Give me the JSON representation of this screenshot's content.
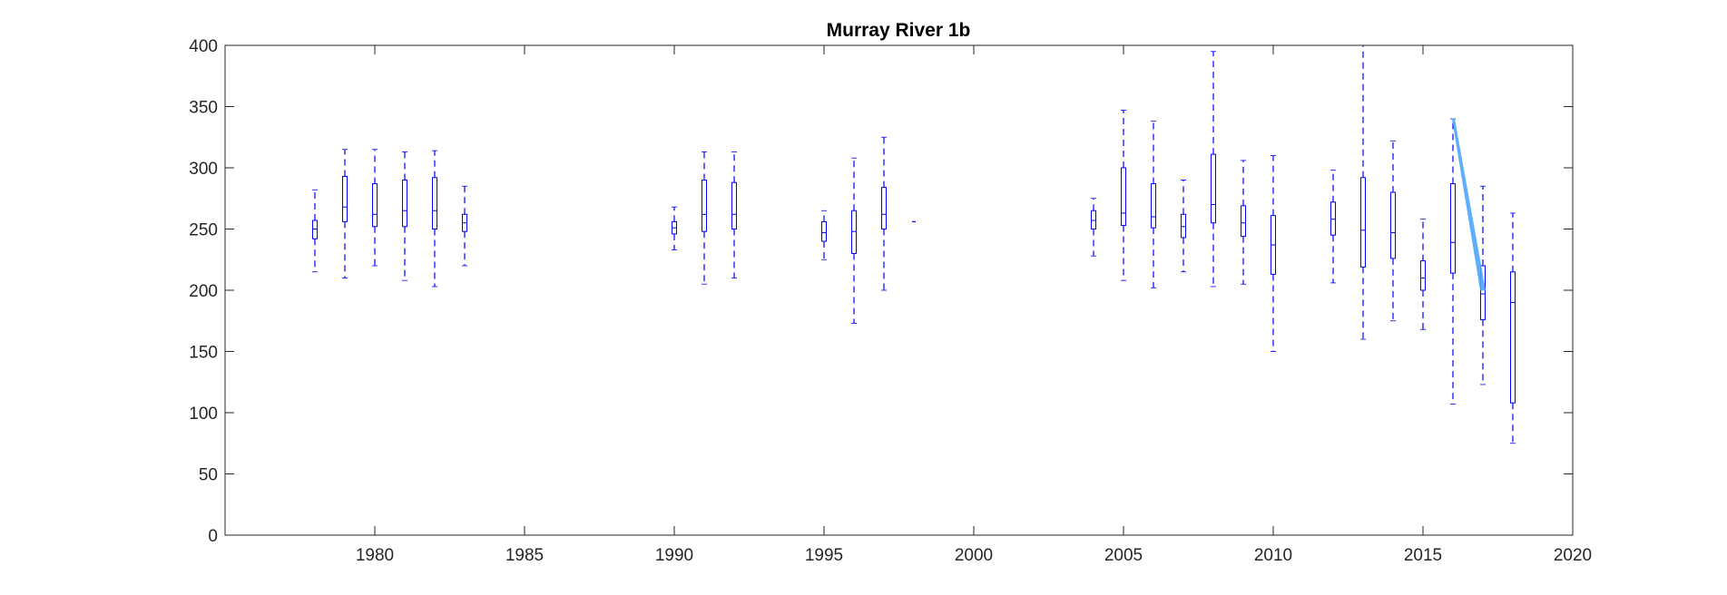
{
  "chart_data": {
    "type": "boxplot",
    "title": "Murray River 1b",
    "xlabel": "",
    "ylabel": "",
    "xlim": [
      1975,
      2020
    ],
    "ylim": [
      0,
      400
    ],
    "xticks": [
      1980,
      1985,
      1990,
      1995,
      2000,
      2005,
      2010,
      2015,
      2020
    ],
    "yticks": [
      0,
      50,
      100,
      150,
      200,
      250,
      300,
      350,
      400
    ],
    "grid": false,
    "colors": {
      "box": "#0000ff",
      "whisker": "#0000ff",
      "median": "#0000ff",
      "axis": "#262626",
      "highlight": "#4da6ff"
    },
    "boxes": [
      {
        "x": 1978,
        "min": 215,
        "q1": 242,
        "median": 250,
        "q3": 257,
        "max": 282
      },
      {
        "x": 1979,
        "min": 210,
        "q1": 256,
        "median": 268,
        "q3": 293,
        "max": 315
      },
      {
        "x": 1980,
        "min": 220,
        "q1": 252,
        "median": 262,
        "q3": 287,
        "max": 315
      },
      {
        "x": 1981,
        "min": 208,
        "q1": 252,
        "median": 265,
        "q3": 290,
        "max": 313
      },
      {
        "x": 1982,
        "min": 203,
        "q1": 250,
        "median": 265,
        "q3": 292,
        "max": 314
      },
      {
        "x": 1983,
        "min": 220,
        "q1": 248,
        "median": 255,
        "q3": 262,
        "max": 285
      },
      {
        "x": 1990,
        "min": 233,
        "q1": 246,
        "median": 251,
        "q3": 256,
        "max": 268
      },
      {
        "x": 1991,
        "min": 205,
        "q1": 248,
        "median": 262,
        "q3": 290,
        "max": 313
      },
      {
        "x": 1992,
        "min": 210,
        "q1": 250,
        "median": 262,
        "q3": 288,
        "max": 313
      },
      {
        "x": 1995,
        "min": 225,
        "q1": 240,
        "median": 247,
        "q3": 256,
        "max": 265
      },
      {
        "x": 1996,
        "min": 173,
        "q1": 230,
        "median": 248,
        "q3": 265,
        "max": 308
      },
      {
        "x": 1997,
        "min": 200,
        "q1": 250,
        "median": 262,
        "q3": 284,
        "max": 325
      },
      {
        "x": 1998,
        "min": 256,
        "q1": 256,
        "median": 256,
        "q3": 256,
        "max": 256
      },
      {
        "x": 2004,
        "min": 228,
        "q1": 250,
        "median": 257,
        "q3": 265,
        "max": 275
      },
      {
        "x": 2005,
        "min": 208,
        "q1": 253,
        "median": 263,
        "q3": 300,
        "max": 347
      },
      {
        "x": 2006,
        "min": 202,
        "q1": 251,
        "median": 260,
        "q3": 287,
        "max": 338
      },
      {
        "x": 2007,
        "min": 215,
        "q1": 243,
        "median": 252,
        "q3": 262,
        "max": 290
      },
      {
        "x": 2008,
        "min": 203,
        "q1": 255,
        "median": 270,
        "q3": 311,
        "max": 395
      },
      {
        "x": 2009,
        "min": 205,
        "q1": 244,
        "median": 255,
        "q3": 269,
        "max": 306
      },
      {
        "x": 2010,
        "min": 150,
        "q1": 213,
        "median": 237,
        "q3": 261,
        "max": 310
      },
      {
        "x": 2012,
        "min": 206,
        "q1": 245,
        "median": 258,
        "q3": 272,
        "max": 298
      },
      {
        "x": 2013,
        "min": 160,
        "q1": 219,
        "median": 249,
        "q3": 292,
        "max": 400
      },
      {
        "x": 2014,
        "min": 175,
        "q1": 226,
        "median": 247,
        "q3": 280,
        "max": 322
      },
      {
        "x": 2015,
        "min": 168,
        "q1": 200,
        "median": 210,
        "q3": 224,
        "max": 258
      },
      {
        "x": 2016,
        "min": 107,
        "q1": 214,
        "median": 239,
        "q3": 287,
        "max": 340
      },
      {
        "x": 2017,
        "min": 123,
        "q1": 176,
        "median": 197,
        "q3": 220,
        "max": 285
      },
      {
        "x": 2018,
        "min": 75,
        "q1": 108,
        "median": 190,
        "q3": 215,
        "max": 263
      }
    ],
    "highlight_segment": {
      "x1": 2016,
      "y1": 340,
      "x2": 2017,
      "y2": 200
    }
  }
}
